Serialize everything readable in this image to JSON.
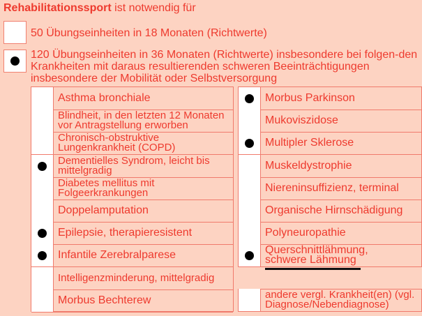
{
  "title": {
    "bold": "Rehabilitationssport",
    "rest": " ist notwendig für"
  },
  "options": [
    {
      "label": "50 Übungseinheiten in 18 Monaten (Richtwerte)",
      "checked": false
    },
    {
      "label": "120 Übungseinheiten in 36 Monaten (Richtwerte) insbesondere bei folgen-den Krankheiten mit daraus resultierenden schweren Beeinträchtigungen insbesondere der Mobilität oder Selbstversorgung",
      "checked": true
    }
  ],
  "left": [
    {
      "label": "Asthma bronchiale",
      "checked": false
    },
    {
      "label": "Blindheit, in den letzten 12 Monaten vor Antragstellung erworben",
      "checked": false
    },
    {
      "label": "Chronisch-obstruktive Lungenkrankheit (COPD)",
      "checked": false
    },
    {
      "label": "Dementielles Syndrom, leicht bis mittelgradig",
      "checked": true
    },
    {
      "label": "Diabetes mellitus mit Folgeerkrankungen",
      "checked": false
    },
    {
      "label": "Doppelamputation",
      "checked": false
    },
    {
      "label": "Epilepsie, therapieresistent",
      "checked": true
    },
    {
      "label": "Infantile Zerebralparese",
      "checked": true
    },
    {
      "label": "Intelligenzminderung, mittelgradig",
      "checked": false
    },
    {
      "label": "Morbus Bechterew",
      "checked": false
    }
  ],
  "right": [
    {
      "label": "Morbus Parkinson",
      "checked": true
    },
    {
      "label": "Mukoviszidose",
      "checked": false
    },
    {
      "label": "Multipler Sklerose",
      "checked": true
    },
    {
      "label": "Muskeldystrophie",
      "checked": false
    },
    {
      "label": "Niereninsuffizienz, terminal",
      "checked": false
    },
    {
      "label": "Organische Hirnschädigung",
      "checked": false
    },
    {
      "label": "Polyneuropathie",
      "checked": false
    },
    {
      "label": "Querschnittlähmung,",
      "label2": "schwere Lähmung",
      "checked": true,
      "strike": "schwere Lähmung"
    },
    {
      "label": "andere vergl. Krankheit(en) (vgl. Diagnose/Nebendiagnose)",
      "checked": false
    }
  ]
}
